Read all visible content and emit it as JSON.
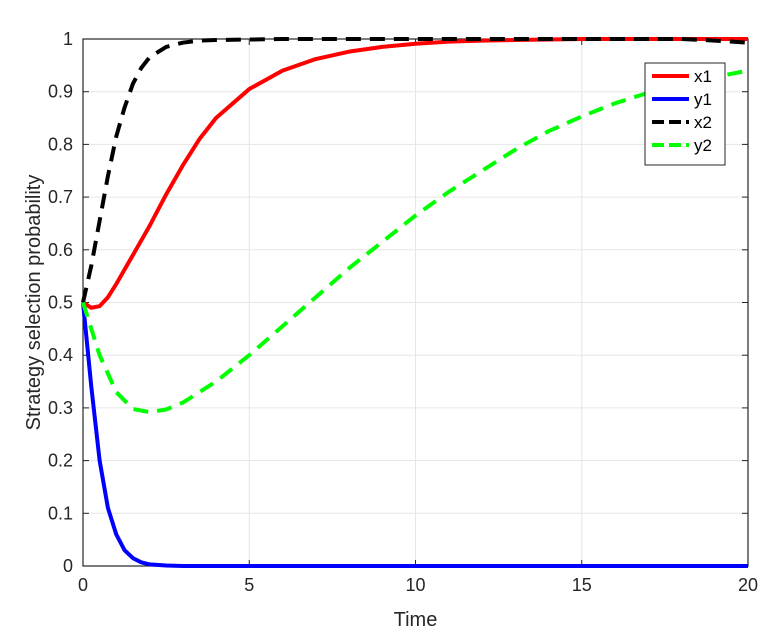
{
  "chart_data": {
    "type": "line",
    "title": "",
    "xlabel": "Time",
    "ylabel": "Strategy selection probability",
    "xlim": [
      0,
      20
    ],
    "ylim": [
      0,
      1
    ],
    "xticks": [
      0,
      5,
      10,
      15,
      20
    ],
    "yticks": [
      0,
      0.1,
      0.2,
      0.3,
      0.4,
      0.5,
      0.6,
      0.7,
      0.8,
      0.9,
      1
    ],
    "grid": true,
    "legend_position": "top-right",
    "series": [
      {
        "name": "x1",
        "color": "#ff0000",
        "dash": "solid",
        "x": [
          0,
          0.25,
          0.5,
          0.75,
          1,
          1.5,
          2,
          2.5,
          3,
          3.5,
          4,
          5,
          6,
          7,
          8,
          9,
          10,
          11,
          12,
          13,
          14,
          15,
          16,
          17,
          18,
          19,
          20
        ],
        "y": [
          0.5,
          0.49,
          0.493,
          0.51,
          0.535,
          0.59,
          0.645,
          0.705,
          0.76,
          0.81,
          0.85,
          0.905,
          0.94,
          0.962,
          0.976,
          0.985,
          0.991,
          0.995,
          0.997,
          0.998,
          0.999,
          1.0,
          1.0,
          1.0,
          1.0,
          1.0,
          1.0
        ]
      },
      {
        "name": "y1",
        "color": "#0000ff",
        "dash": "solid",
        "x": [
          0,
          0.25,
          0.5,
          0.75,
          1,
          1.25,
          1.5,
          1.75,
          2,
          2.5,
          3,
          4,
          5,
          10,
          15,
          20
        ],
        "y": [
          0.5,
          0.34,
          0.2,
          0.11,
          0.06,
          0.03,
          0.015,
          0.007,
          0.003,
          0.001,
          0.0,
          0.0,
          0.0,
          0.0,
          0.0,
          0.0
        ]
      },
      {
        "name": "x2",
        "color": "#000000",
        "dash": "dashed",
        "x": [
          0,
          0.25,
          0.5,
          0.75,
          1,
          1.25,
          1.5,
          1.75,
          2,
          2.5,
          3,
          3.5,
          4,
          5,
          6,
          8,
          10,
          12,
          15,
          18,
          19,
          20
        ],
        "y": [
          0.5,
          0.57,
          0.655,
          0.74,
          0.815,
          0.87,
          0.915,
          0.945,
          0.965,
          0.985,
          0.993,
          0.997,
          0.998,
          0.999,
          1.0,
          1.0,
          1.0,
          1.0,
          1.0,
          1.0,
          0.997,
          0.993
        ]
      },
      {
        "name": "y2",
        "color": "#00ff00",
        "dash": "dashed",
        "x": [
          0,
          0.25,
          0.5,
          1,
          1.5,
          2,
          2.5,
          3,
          4,
          5,
          6,
          7,
          8,
          9,
          10,
          11,
          12,
          13,
          14,
          15,
          16,
          17,
          18,
          19,
          20
        ],
        "y": [
          0.5,
          0.45,
          0.4,
          0.33,
          0.298,
          0.292,
          0.297,
          0.31,
          0.35,
          0.4,
          0.455,
          0.51,
          0.565,
          0.615,
          0.665,
          0.71,
          0.75,
          0.79,
          0.825,
          0.853,
          0.878,
          0.898,
          0.915,
          0.928,
          0.94
        ]
      }
    ]
  }
}
